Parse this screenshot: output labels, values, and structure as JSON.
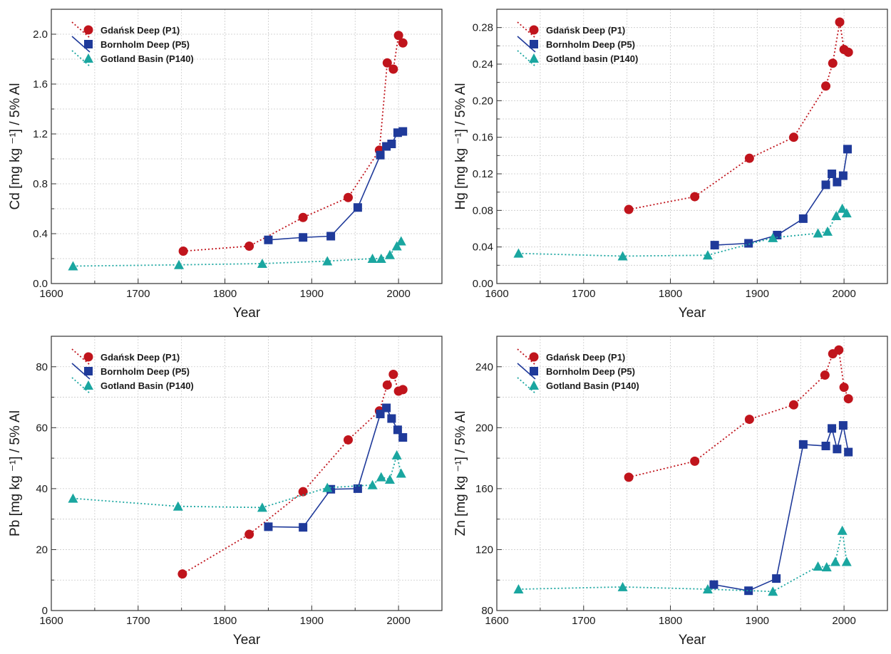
{
  "chart_data": [
    {
      "type": "scatter",
      "panel": "top-left",
      "xlabel": "Year",
      "ylabel": "Cd  [mg kg ⁻¹] / 5% Al",
      "xlim": [
        1600,
        2050
      ],
      "ylim": [
        0.0,
        2.2
      ],
      "xticks": [
        1600,
        1700,
        1800,
        1900,
        2000
      ],
      "xtick_labels": [
        "1600",
        "1700",
        "1800",
        "1900",
        "2000"
      ],
      "yticks": [
        0.0,
        0.4,
        0.8,
        1.2,
        1.6,
        2.0
      ],
      "ytick_labels": [
        "0.0",
        "0.4",
        "0.8",
        "1.2",
        "1.6",
        "2.0"
      ],
      "grid": true,
      "legend_position": "top-left",
      "series": [
        {
          "name": "Gdańsk Deep (P1)",
          "marker": "circle",
          "line": "dotted",
          "color": "#c0141c",
          "x": [
            1752,
            1828,
            1890,
            1942,
            1978,
            1987,
            1994,
            2000,
            2005
          ],
          "y": [
            0.26,
            0.3,
            0.53,
            0.69,
            1.07,
            1.77,
            1.72,
            1.99,
            1.93
          ]
        },
        {
          "name": "Bornholm Deep (P5)",
          "marker": "square",
          "line": "solid",
          "color": "#1f3a9a",
          "x": [
            1850,
            1890,
            1922,
            1953,
            1979,
            1986,
            1992,
            1999,
            2005
          ],
          "y": [
            0.35,
            0.37,
            0.38,
            0.61,
            1.03,
            1.1,
            1.12,
            1.21,
            1.22
          ]
        },
        {
          "name": "Gotland Basin (P140)",
          "marker": "triangle",
          "line": "dotted",
          "color": "#1aa6a0",
          "x": [
            1625,
            1747,
            1843,
            1918,
            1970,
            1980,
            1990,
            1998,
            2003
          ],
          "y": [
            0.14,
            0.15,
            0.16,
            0.18,
            0.2,
            0.2,
            0.23,
            0.3,
            0.34
          ]
        }
      ]
    },
    {
      "type": "scatter",
      "panel": "top-right",
      "xlabel": "Year",
      "ylabel": "Hg [mg kg ⁻¹] / 5% Al",
      "xlim": [
        1600,
        2050
      ],
      "ylim": [
        0.0,
        0.3
      ],
      "xticks": [
        1600,
        1700,
        1800,
        1900,
        2000
      ],
      "xtick_labels": [
        "1600",
        "1700",
        "1800",
        "1900",
        "2000"
      ],
      "yticks": [
        0.0,
        0.04,
        0.08,
        0.12,
        0.16,
        0.2,
        0.24,
        0.28
      ],
      "ytick_labels": [
        "0.00",
        "0.04",
        "0.08",
        "0.12",
        "0.16",
        "0.20",
        "0.24",
        "0.28"
      ],
      "grid": true,
      "legend_position": "top-left",
      "series": [
        {
          "name": "Gdańsk Deep (P1)",
          "marker": "circle",
          "line": "dotted",
          "color": "#c0141c",
          "x": [
            1752,
            1828,
            1891,
            1942,
            1979,
            1987,
            1995,
            2000,
            2005
          ],
          "y": [
            0.081,
            0.095,
            0.137,
            0.16,
            0.216,
            0.241,
            0.286,
            0.256,
            0.253
          ]
        },
        {
          "name": "Bornholm Deep (P5)",
          "marker": "square",
          "line": "solid",
          "color": "#1f3a9a",
          "x": [
            1851,
            1890,
            1923,
            1953,
            1979,
            1986,
            1992,
            1999,
            2004
          ],
          "y": [
            0.042,
            0.044,
            0.053,
            0.071,
            0.108,
            0.12,
            0.111,
            0.118,
            0.147
          ]
        },
        {
          "name": "Gotland basin (P140)",
          "marker": "triangle",
          "line": "dotted",
          "color": "#1aa6a0",
          "x": [
            1625,
            1745,
            1843,
            1918,
            1970,
            1981,
            1991,
            1998,
            2003
          ],
          "y": [
            0.033,
            0.03,
            0.031,
            0.05,
            0.055,
            0.057,
            0.074,
            0.082,
            0.077
          ]
        }
      ]
    },
    {
      "type": "scatter",
      "panel": "bottom-left",
      "xlabel": "Year",
      "ylabel": "Pb  [mg kg ⁻¹] / 5% Al",
      "xlim": [
        1600,
        2050
      ],
      "ylim": [
        0,
        90
      ],
      "xticks": [
        1600,
        1700,
        1800,
        1900,
        2000
      ],
      "xtick_labels": [
        "1600",
        "1700",
        "1800",
        "1900",
        "2000"
      ],
      "yticks": [
        0,
        20,
        40,
        60,
        80
      ],
      "ytick_labels": [
        "0",
        "20",
        "40",
        "60",
        "80"
      ],
      "grid": true,
      "legend_position": "top-left",
      "series": [
        {
          "name": "Gdańsk Deep (P1)",
          "marker": "circle",
          "line": "dotted",
          "color": "#c0141c",
          "x": [
            1751,
            1828,
            1890,
            1942,
            1978,
            1987,
            1994,
            2000,
            2005
          ],
          "y": [
            12,
            25,
            39,
            56,
            65.5,
            74,
            77.5,
            72,
            72.5
          ]
        },
        {
          "name": "Bornholm Deep (P5)",
          "marker": "square",
          "line": "solid",
          "color": "#1f3a9a",
          "x": [
            1850,
            1890,
            1922,
            1953,
            1979,
            1986,
            1992,
            1999,
            2005
          ],
          "y": [
            27.5,
            27.3,
            39.8,
            40,
            64.5,
            66.5,
            63,
            59.3,
            56.8
          ]
        },
        {
          "name": "Gotland Basin (P140)",
          "marker": "triangle",
          "line": "dotted",
          "color": "#1aa6a0",
          "x": [
            1625,
            1746,
            1843,
            1918,
            1970,
            1980,
            1990,
            1998,
            2003
          ],
          "y": [
            36.8,
            34.2,
            33.8,
            40.3,
            41.2,
            43.8,
            43,
            51,
            45
          ]
        }
      ]
    },
    {
      "type": "scatter",
      "panel": "bottom-right",
      "xlabel": "Year",
      "ylabel": "Zn  [mg kg ⁻¹] / 5% Al",
      "xlim": [
        1600,
        2050
      ],
      "ylim": [
        80,
        260
      ],
      "xticks": [
        1600,
        1700,
        1800,
        1900,
        2000
      ],
      "xtick_labels": [
        "1600",
        "1700",
        "1800",
        "1900",
        "2000"
      ],
      "yticks": [
        80,
        120,
        160,
        200,
        240
      ],
      "ytick_labels": [
        "80",
        "120",
        "160",
        "200",
        "240"
      ],
      "grid": true,
      "legend_position": "top-left",
      "series": [
        {
          "name": "Gdańsk Deep (P1)",
          "marker": "circle",
          "line": "dotted",
          "color": "#c0141c",
          "x": [
            1752,
            1828,
            1891,
            1942,
            1978,
            1987,
            1994,
            2000,
            2005
          ],
          "y": [
            167.5,
            178,
            205.5,
            215,
            234.5,
            248.5,
            251,
            226.5,
            219
          ]
        },
        {
          "name": "Bornholm Deep (P5)",
          "marker": "square",
          "line": "solid",
          "color": "#1f3a9a",
          "x": [
            1850,
            1890,
            1922,
            1953,
            1979,
            1986,
            1992,
            1999,
            2005
          ],
          "y": [
            97,
            93,
            101,
            189,
            188,
            199.5,
            186,
            201.5,
            184
          ]
        },
        {
          "name": "Gotland Basin (P140)",
          "marker": "triangle",
          "line": "dotted",
          "color": "#1aa6a0",
          "x": [
            1625,
            1745,
            1843,
            1918,
            1970,
            1980,
            1990,
            1998,
            2003
          ],
          "y": [
            94,
            95.5,
            94,
            92.5,
            109,
            108.5,
            112,
            132.5,
            112
          ]
        }
      ]
    }
  ]
}
